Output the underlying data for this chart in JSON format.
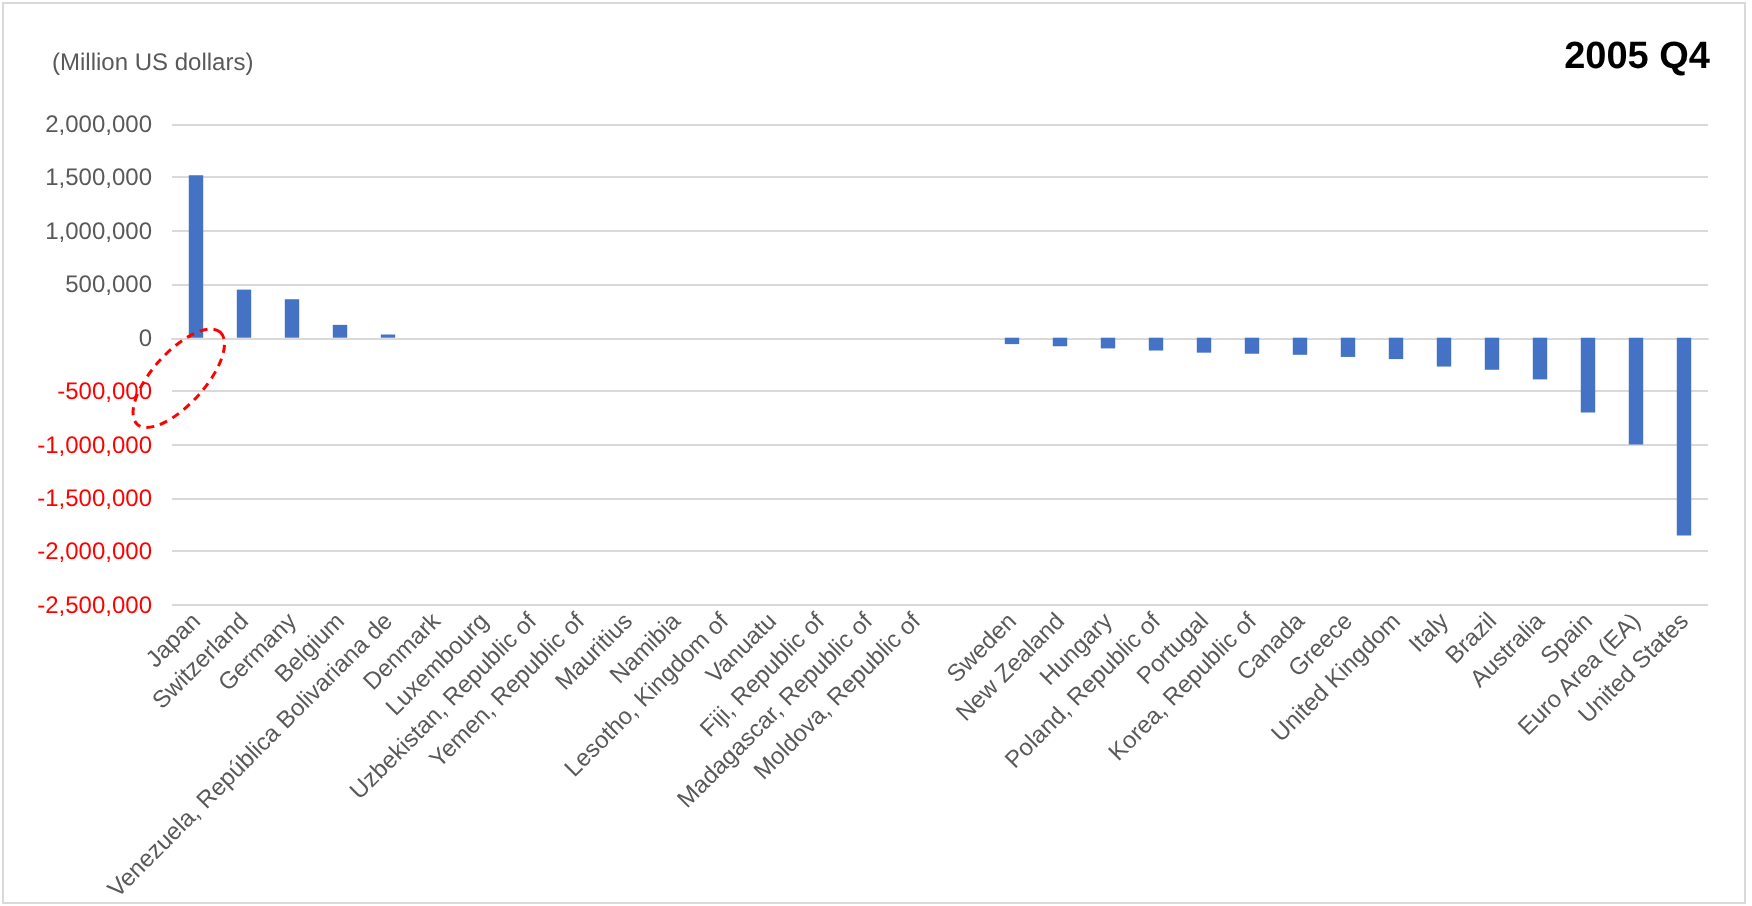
{
  "chart_data": {
    "type": "bar",
    "title": "2005 Q4",
    "ylabel": "(Million US dollars)",
    "categories": [
      "Japan",
      "Switzerland",
      "Germany",
      "Belgium",
      "Venezuela, República Bolivariana de",
      "Denmark",
      "Luxembourg",
      "Uzbekistan, Republic of",
      "Yemen, Republic of",
      "Mauritius",
      "Namibia",
      "Lesotho, Kingdom of",
      "Vanuatu",
      "Fiji, Republic of",
      "Madagascar, Republic of",
      "Moldova, Republic of",
      null,
      "Sweden",
      "New Zealand",
      "Hungary",
      "Poland, Republic of",
      "Portugal",
      "Korea, Republic of",
      "Canada",
      "Greece",
      "United Kingdom",
      "Italy",
      "Brazil",
      "Australia",
      "Spain",
      "Euro Area (EA)",
      "United States"
    ],
    "values": [
      1520000,
      450000,
      360000,
      120000,
      30000,
      0,
      0,
      0,
      0,
      0,
      0,
      0,
      0,
      0,
      0,
      0,
      null,
      -60000,
      -80000,
      -100000,
      -120000,
      -140000,
      -150000,
      -160000,
      -180000,
      -200000,
      -270000,
      -300000,
      -390000,
      -700000,
      -1000000,
      -1850000
    ],
    "color": "#4472c4",
    "ylim": [
      -2500000,
      2000000
    ],
    "yticks": [
      {
        "value": -2500000,
        "label": "-2,500,000"
      },
      {
        "value": -2000000,
        "label": "-2,000,000"
      },
      {
        "value": -1500000,
        "label": "-1,500,000"
      },
      {
        "value": -1000000,
        "label": "-1,000,000"
      },
      {
        "value": -500000,
        "label": "-500,000"
      },
      {
        "value": 0,
        "label": "0"
      },
      {
        "value": 500000,
        "label": "500,000"
      },
      {
        "value": 1000000,
        "label": "1,000,000"
      },
      {
        "value": 1500000,
        "label": "1,500,000"
      },
      {
        "value": 2000000,
        "label": "2,000,000"
      }
    ],
    "grid": "y"
  }
}
